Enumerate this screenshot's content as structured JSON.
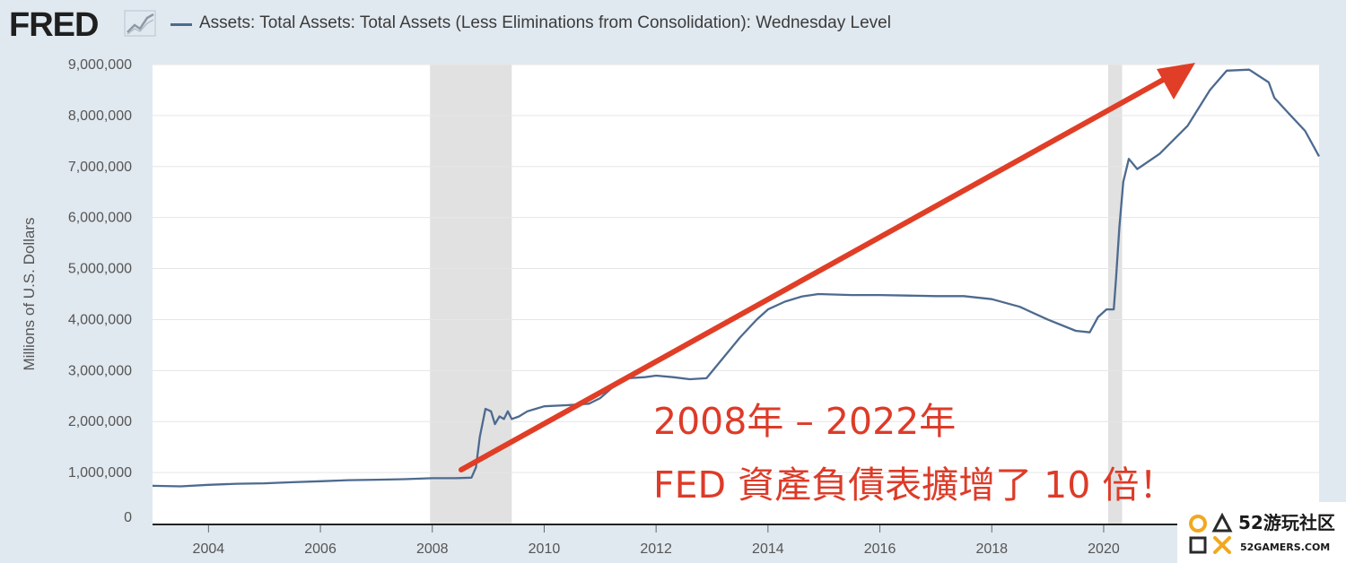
{
  "header": {
    "logo_text": "FRED",
    "logo_mark": "line-chart-icon",
    "legend_label": "Assets: Total Assets: Total Assets (Less Eliminations from Consolidation): Wednesday Level"
  },
  "colors": {
    "series": "#4d6a8f",
    "arrow": "#e03e26",
    "recession": "#e1e1e1",
    "background": "#e1e9f0"
  },
  "chart_data": {
    "type": "line",
    "title": "",
    "xlabel": "",
    "ylabel": "Millions of U.S. Dollars",
    "xlim": [
      2003.0,
      2023.85
    ],
    "ylim": [
      0,
      9000000
    ],
    "yticks": [
      "0",
      "1,000,000",
      "2,000,000",
      "3,000,000",
      "4,000,000",
      "5,000,000",
      "6,000,000",
      "7,000,000",
      "8,000,000",
      "9,000,000"
    ],
    "ytick_values": [
      0,
      1000000,
      2000000,
      3000000,
      4000000,
      5000000,
      6000000,
      7000000,
      8000000,
      9000000
    ],
    "xticks": [
      "2004",
      "2006",
      "2008",
      "2010",
      "2012",
      "2014",
      "2016",
      "2018",
      "2020",
      "20"
    ],
    "xtick_values": [
      2004,
      2006,
      2008,
      2010,
      2012,
      2014,
      2016,
      2018,
      2020,
      2022
    ],
    "recessions": [
      [
        2007.96,
        2009.42
      ],
      [
        2020.08,
        2020.33
      ]
    ],
    "grid": true,
    "series": [
      {
        "x": [
          2003.0,
          2003.5,
          2004.0,
          2004.5,
          2005.0,
          2005.5,
          2006.0,
          2006.5,
          2007.0,
          2007.5,
          2008.0,
          2008.4,
          2008.7,
          2008.78,
          2008.85,
          2008.95,
          2009.05,
          2009.12,
          2009.2,
          2009.28,
          2009.35,
          2009.42,
          2009.55,
          2009.7,
          2009.85,
          2010.0,
          2010.4,
          2010.8,
          2011.0,
          2011.2,
          2011.5,
          2011.8,
          2012.0,
          2012.3,
          2012.6,
          2012.9,
          2013.2,
          2013.5,
          2013.8,
          2014.0,
          2014.3,
          2014.6,
          2014.9,
          2015.5,
          2016.0,
          2016.5,
          2017.0,
          2017.5,
          2018.0,
          2018.5,
          2019.0,
          2019.5,
          2019.75,
          2019.9,
          2020.05,
          2020.18,
          2020.22,
          2020.28,
          2020.35,
          2020.45,
          2020.6,
          2021.0,
          2021.5,
          2021.9,
          2022.2,
          2022.6,
          2022.95,
          2023.05,
          2023.3,
          2023.6,
          2023.85
        ],
        "y": [
          740000,
          730000,
          760000,
          780000,
          790000,
          810000,
          830000,
          850000,
          860000,
          870000,
          890000,
          890000,
          900000,
          1100000,
          1700000,
          2250000,
          2200000,
          1950000,
          2100000,
          2050000,
          2200000,
          2050000,
          2100000,
          2200000,
          2250000,
          2300000,
          2320000,
          2350000,
          2460000,
          2650000,
          2850000,
          2870000,
          2900000,
          2870000,
          2830000,
          2850000,
          3250000,
          3650000,
          4000000,
          4200000,
          4350000,
          4450000,
          4500000,
          4480000,
          4480000,
          4470000,
          4460000,
          4460000,
          4400000,
          4250000,
          4000000,
          3780000,
          3750000,
          4050000,
          4200000,
          4200000,
          4800000,
          5800000,
          6700000,
          7150000,
          6950000,
          7250000,
          7800000,
          8500000,
          8880000,
          8900000,
          8650000,
          8350000,
          8050000,
          7700000,
          7200000
        ]
      }
    ],
    "annotations": {
      "line1": "2008年 – 2022年",
      "line2": "FED 資產負債表擴增了 10 倍！"
    }
  },
  "watermark": {
    "text": "52游玩社区",
    "domain": "52GAMERS.COM"
  }
}
